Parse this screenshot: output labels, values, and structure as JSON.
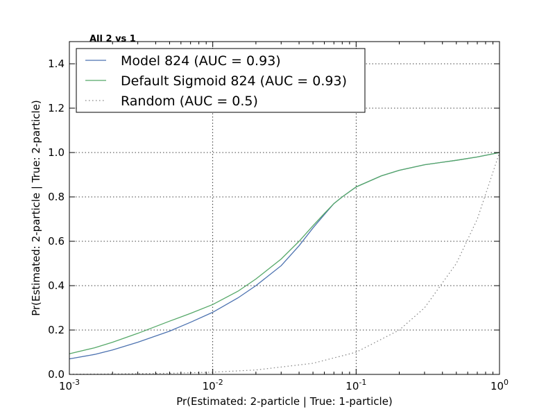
{
  "chart_data": {
    "type": "line",
    "title": "All 2 vs 1",
    "xlabel": "Pr(Estimated: 2-particle | True: 1-particle)",
    "ylabel": "Pr(Estimated: 2-particle | True: 2-particle)",
    "xscale": "log",
    "xlim": [
      0.001,
      1
    ],
    "ylim": [
      0,
      1.5
    ],
    "grid": true,
    "legend_position": "top-left",
    "x_ticks": [
      {
        "value": 0.001,
        "base": "10",
        "exp": "-3"
      },
      {
        "value": 0.01,
        "base": "10",
        "exp": "-2"
      },
      {
        "value": 0.1,
        "base": "10",
        "exp": "-1"
      },
      {
        "value": 1,
        "base": "10",
        "exp": "0"
      }
    ],
    "y_ticks": [
      {
        "value": 0.0,
        "label": "0.0"
      },
      {
        "value": 0.2,
        "label": "0.2"
      },
      {
        "value": 0.4,
        "label": "0.4"
      },
      {
        "value": 0.6,
        "label": "0.6"
      },
      {
        "value": 0.8,
        "label": "0.8"
      },
      {
        "value": 1.0,
        "label": "1.0"
      },
      {
        "value": 1.2,
        "label": "1.2"
      },
      {
        "value": 1.4,
        "label": "1.4"
      }
    ],
    "series": [
      {
        "name": "Model 824 (AUC = 0.93)",
        "color": "#4c72b0",
        "style": "solid",
        "x": [
          0.001,
          0.0015,
          0.002,
          0.003,
          0.005,
          0.007,
          0.01,
          0.015,
          0.02,
          0.03,
          0.04,
          0.05,
          0.06,
          0.07,
          0.08,
          0.1,
          0.15,
          0.2,
          0.3,
          0.5,
          0.7,
          1.0
        ],
        "y": [
          0.07,
          0.09,
          0.11,
          0.145,
          0.195,
          0.235,
          0.28,
          0.345,
          0.4,
          0.49,
          0.58,
          0.66,
          0.72,
          0.77,
          0.8,
          0.845,
          0.895,
          0.92,
          0.945,
          0.965,
          0.98,
          1.0
        ]
      },
      {
        "name": "Default Sigmoid 824 (AUC = 0.93)",
        "color": "#55a868",
        "style": "solid",
        "x": [
          0.001,
          0.0015,
          0.002,
          0.003,
          0.005,
          0.007,
          0.01,
          0.015,
          0.02,
          0.03,
          0.04,
          0.05,
          0.06,
          0.07,
          0.08,
          0.1,
          0.15,
          0.2,
          0.3,
          0.5,
          0.7,
          1.0
        ],
        "y": [
          0.093,
          0.12,
          0.145,
          0.185,
          0.24,
          0.275,
          0.315,
          0.375,
          0.43,
          0.52,
          0.6,
          0.67,
          0.725,
          0.77,
          0.8,
          0.845,
          0.895,
          0.92,
          0.945,
          0.965,
          0.98,
          1.0
        ]
      },
      {
        "name": "Random (AUC = 0.5)",
        "color": "#808080",
        "style": "dotted",
        "x": [
          0.001,
          0.002,
          0.005,
          0.01,
          0.02,
          0.05,
          0.1,
          0.2,
          0.3,
          0.5,
          0.7,
          1.0
        ],
        "y": [
          0.001,
          0.002,
          0.005,
          0.01,
          0.02,
          0.05,
          0.1,
          0.2,
          0.3,
          0.5,
          0.7,
          1.0
        ]
      }
    ]
  }
}
